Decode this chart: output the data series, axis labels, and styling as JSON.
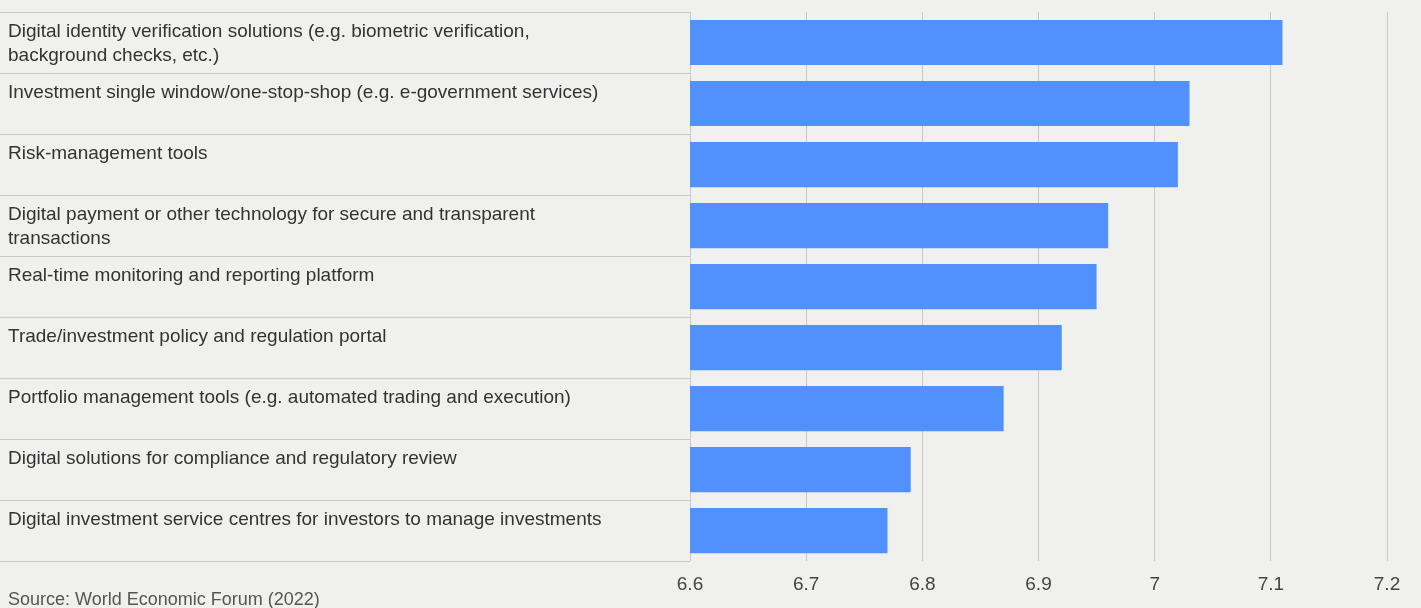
{
  "chart_data": {
    "type": "bar",
    "orientation": "horizontal",
    "categories": [
      "Digital identity verification solutions (e.g. biometric verification, background checks, etc.)",
      "Investment single window/one-stop-shop (e.g. e-government services)",
      "Risk-management tools",
      "Digital payment or other technology for secure and transparent transactions",
      "Real-time monitoring and reporting platform",
      "Trade/investment policy and regulation portal",
      "Portfolio management tools (e.g. automated trading and execution)",
      "Digital solutions for compliance and regulatory review",
      "Digital investment service centres for investors to manage investments"
    ],
    "values": [
      7.11,
      7.03,
      7.02,
      6.96,
      6.95,
      6.92,
      6.87,
      6.79,
      6.77
    ],
    "color": "#5191fe",
    "xlim": [
      6.6,
      7.2
    ],
    "xticks": [
      6.6,
      6.7,
      6.8,
      6.9,
      7,
      7.1,
      7.2
    ],
    "grid": "x",
    "legend": false,
    "annotations": [
      "Source: World Economic Forum (2022)"
    ]
  }
}
